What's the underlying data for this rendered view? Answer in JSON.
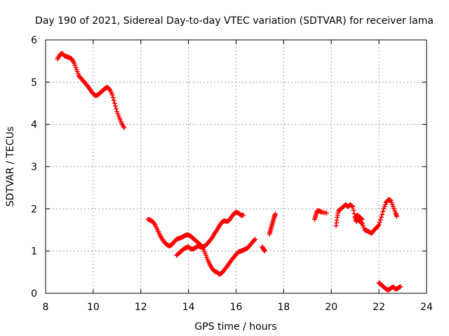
{
  "chart_data": {
    "type": "scatter",
    "title": "Day 190 of 2021, Sidereal Day-to-day VTEC variation (SDTVAR) for receiver lama",
    "xlabel": "GPS time / hours",
    "ylabel": "SDTVAR / TECUs",
    "xlim": [
      8,
      24
    ],
    "ylim": [
      0,
      6
    ],
    "x_ticks": [
      "8",
      "10",
      "12",
      "14",
      "16",
      "18",
      "20",
      "22",
      "24"
    ],
    "y_ticks": [
      "0",
      "1",
      "2",
      "3",
      "4",
      "5",
      "6"
    ],
    "grid": true,
    "marker": "plus",
    "marker_color": "#ff0000",
    "series": [
      {
        "name": "SDTVAR",
        "segments": [
          [
            [
              8.5,
              5.55
            ],
            [
              8.6,
              5.65
            ],
            [
              8.7,
              5.68
            ],
            [
              8.8,
              5.62
            ],
            [
              8.9,
              5.6
            ],
            [
              9.0,
              5.58
            ],
            [
              9.1,
              5.55
            ],
            [
              9.2,
              5.45
            ],
            [
              9.3,
              5.3
            ],
            [
              9.4,
              5.15
            ],
            [
              9.5,
              5.08
            ],
            [
              9.6,
              5.02
            ],
            [
              9.7,
              4.95
            ],
            [
              9.8,
              4.88
            ],
            [
              9.9,
              4.8
            ],
            [
              10.0,
              4.72
            ],
            [
              10.1,
              4.68
            ],
            [
              10.2,
              4.7
            ],
            [
              10.3,
              4.75
            ],
            [
              10.4,
              4.8
            ],
            [
              10.5,
              4.85
            ],
            [
              10.6,
              4.88
            ],
            [
              10.7,
              4.82
            ],
            [
              10.8,
              4.7
            ],
            [
              10.9,
              4.5
            ],
            [
              11.0,
              4.3
            ],
            [
              11.1,
              4.15
            ],
            [
              11.2,
              4.02
            ],
            [
              11.3,
              3.92
            ]
          ],
          [
            [
              12.3,
              1.75
            ],
            [
              12.4,
              1.73
            ],
            [
              12.5,
              1.7
            ],
            [
              12.6,
              1.62
            ],
            [
              12.7,
              1.5
            ],
            [
              12.8,
              1.38
            ],
            [
              12.9,
              1.28
            ],
            [
              13.0,
              1.2
            ],
            [
              13.1,
              1.15
            ],
            [
              13.2,
              1.12
            ],
            [
              13.3,
              1.15
            ],
            [
              13.4,
              1.22
            ],
            [
              13.5,
              1.28
            ],
            [
              13.6,
              1.3
            ],
            [
              13.7,
              1.32
            ],
            [
              13.8,
              1.35
            ],
            [
              13.9,
              1.38
            ],
            [
              14.0,
              1.38
            ],
            [
              14.1,
              1.35
            ],
            [
              14.2,
              1.3
            ],
            [
              14.3,
              1.25
            ],
            [
              14.4,
              1.2
            ],
            [
              14.5,
              1.15
            ],
            [
              14.6,
              1.08
            ],
            [
              14.7,
              0.95
            ],
            [
              14.8,
              0.8
            ],
            [
              14.9,
              0.68
            ],
            [
              15.0,
              0.58
            ],
            [
              15.1,
              0.52
            ],
            [
              15.2,
              0.5
            ],
            [
              15.3,
              0.45
            ],
            [
              15.4,
              0.48
            ],
            [
              15.5,
              0.55
            ],
            [
              15.6,
              0.62
            ],
            [
              15.7,
              0.7
            ],
            [
              15.8,
              0.78
            ],
            [
              15.9,
              0.85
            ],
            [
              16.0,
              0.92
            ],
            [
              16.1,
              0.98
            ],
            [
              16.2,
              1.0
            ],
            [
              16.3,
              1.02
            ],
            [
              16.4,
              1.05
            ],
            [
              16.5,
              1.08
            ],
            [
              16.6,
              1.15
            ],
            [
              16.7,
              1.22
            ],
            [
              16.8,
              1.28
            ]
          ],
          [
            [
              13.5,
              0.9
            ],
            [
              13.6,
              0.95
            ],
            [
              13.7,
              1.0
            ],
            [
              13.8,
              1.05
            ],
            [
              13.9,
              1.08
            ],
            [
              14.0,
              1.1
            ],
            [
              14.1,
              1.05
            ],
            [
              14.2,
              1.05
            ],
            [
              14.3,
              1.08
            ],
            [
              14.4,
              1.12
            ],
            [
              14.5,
              1.1
            ],
            [
              14.6,
              1.1
            ],
            [
              14.7,
              1.12
            ],
            [
              14.8,
              1.18
            ],
            [
              14.9,
              1.25
            ],
            [
              15.0,
              1.32
            ],
            [
              15.1,
              1.42
            ],
            [
              15.2,
              1.5
            ],
            [
              15.3,
              1.6
            ],
            [
              15.4,
              1.68
            ],
            [
              15.5,
              1.72
            ],
            [
              15.6,
              1.7
            ],
            [
              15.7,
              1.72
            ],
            [
              15.8,
              1.8
            ],
            [
              15.9,
              1.88
            ],
            [
              16.0,
              1.92
            ],
            [
              16.1,
              1.9
            ],
            [
              16.2,
              1.85
            ],
            [
              16.3,
              1.85
            ]
          ],
          [
            [
              17.1,
              1.1
            ],
            [
              17.15,
              1.05
            ],
            [
              17.2,
              1.0
            ]
          ],
          [
            [
              17.4,
              1.4
            ],
            [
              17.45,
              1.5
            ],
            [
              17.5,
              1.6
            ],
            [
              17.55,
              1.7
            ],
            [
              17.6,
              1.8
            ],
            [
              17.65,
              1.88
            ]
          ],
          [
            [
              19.3,
              1.75
            ],
            [
              19.35,
              1.85
            ],
            [
              19.4,
              1.95
            ],
            [
              19.5,
              1.95
            ],
            [
              19.6,
              1.92
            ],
            [
              19.8,
              1.9
            ]
          ],
          [
            [
              20.2,
              1.6
            ],
            [
              20.25,
              1.8
            ],
            [
              20.3,
              1.95
            ],
            [
              20.4,
              2.0
            ],
            [
              20.5,
              2.05
            ],
            [
              20.6,
              2.1
            ],
            [
              20.7,
              2.05
            ],
            [
              20.8,
              2.1
            ],
            [
              20.9,
              2.05
            ],
            [
              21.0,
              1.8
            ],
            [
              21.05,
              1.7
            ],
            [
              21.1,
              1.75
            ],
            [
              21.2,
              1.7
            ],
            [
              21.3,
              1.65
            ],
            [
              21.4,
              1.5
            ],
            [
              21.5,
              1.48
            ],
            [
              21.6,
              1.45
            ],
            [
              21.7,
              1.42
            ],
            [
              21.8,
              1.5
            ],
            [
              21.9,
              1.55
            ],
            [
              22.0,
              1.62
            ],
            [
              22.1,
              1.8
            ],
            [
              22.2,
              2.0
            ],
            [
              22.3,
              2.15
            ],
            [
              22.4,
              2.22
            ],
            [
              22.5,
              2.2
            ],
            [
              22.6,
              2.05
            ],
            [
              22.7,
              1.9
            ],
            [
              22.75,
              1.82
            ]
          ],
          [
            [
              21.0,
              1.8
            ],
            [
              21.1,
              1.85
            ],
            [
              21.2,
              1.8
            ],
            [
              21.3,
              1.75
            ]
          ],
          [
            [
              22.0,
              0.25
            ],
            [
              22.1,
              0.2
            ],
            [
              22.2,
              0.15
            ],
            [
              22.3,
              0.1
            ],
            [
              22.4,
              0.08
            ],
            [
              22.5,
              0.12
            ],
            [
              22.6,
              0.15
            ],
            [
              22.7,
              0.1
            ],
            [
              22.8,
              0.12
            ],
            [
              22.9,
              0.16
            ]
          ]
        ]
      }
    ]
  }
}
